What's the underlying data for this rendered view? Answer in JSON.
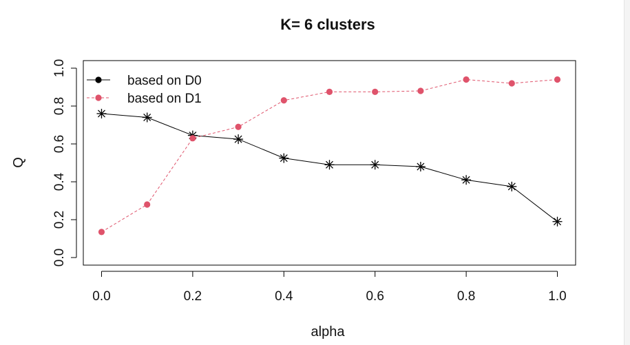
{
  "chart_data": {
    "type": "line",
    "title": "K= 6 clusters",
    "xlabel": "alpha",
    "ylabel": "Q",
    "x": [
      0.0,
      0.1,
      0.2,
      0.3,
      0.4,
      0.5,
      0.6,
      0.7,
      0.8,
      0.9,
      1.0
    ],
    "xlim": [
      -0.04,
      1.04
    ],
    "ylim": [
      -0.04,
      1.04
    ],
    "xticks": [
      "0.0",
      "0.2",
      "0.4",
      "0.6",
      "0.8",
      "1.0"
    ],
    "yticks": [
      "0.0",
      "0.2",
      "0.4",
      "0.6",
      "0.8",
      "1.0"
    ],
    "grid": false,
    "legend_position": "top-left",
    "series": [
      {
        "name": "based on D0",
        "color": "#000000",
        "marker": "asterisk",
        "line_style": "solid",
        "legend_marker": "filled-circle",
        "values": [
          0.76,
          0.74,
          0.645,
          0.625,
          0.525,
          0.49,
          0.49,
          0.48,
          0.41,
          0.375,
          0.19
        ]
      },
      {
        "name": "based on D1",
        "color": "#DF536B",
        "marker": "filled-circle",
        "line_style": "dashed",
        "legend_marker": "filled-circle",
        "values": [
          0.135,
          0.28,
          0.63,
          0.69,
          0.83,
          0.875,
          0.875,
          0.88,
          0.94,
          0.92,
          0.94
        ]
      }
    ]
  }
}
